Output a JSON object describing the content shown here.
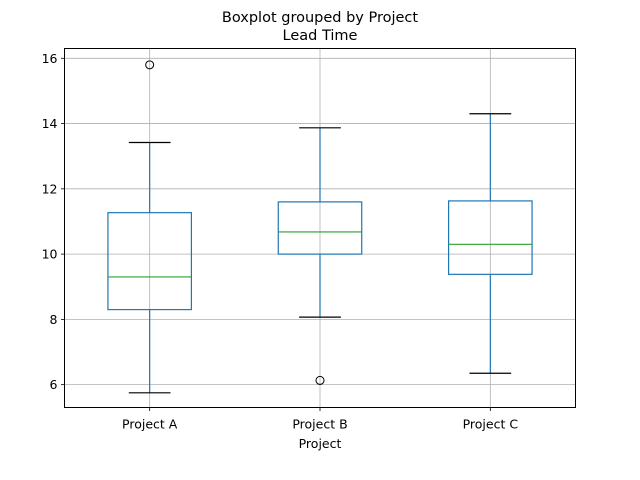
{
  "chart_data": {
    "type": "boxplot",
    "title": "Boxplot grouped by Project",
    "subtitle": "Lead Time",
    "xlabel": "Project",
    "ylabel": "",
    "ylim": [
      5.3,
      16.3
    ],
    "yticks": [
      6,
      8,
      10,
      12,
      14,
      16
    ],
    "grid": true,
    "categories": [
      "Project A",
      "Project B",
      "Project C"
    ],
    "boxes": [
      {
        "name": "Project A",
        "whisker_low": 5.75,
        "q1": 8.3,
        "median": 9.3,
        "q3": 11.27,
        "whisker_high": 13.42,
        "outliers": [
          15.8
        ]
      },
      {
        "name": "Project B",
        "whisker_low": 8.07,
        "q1": 10.0,
        "median": 10.68,
        "q3": 11.6,
        "whisker_high": 13.87,
        "outliers": [
          6.13
        ]
      },
      {
        "name": "Project C",
        "whisker_low": 6.35,
        "q1": 9.38,
        "median": 10.3,
        "q3": 11.63,
        "whisker_high": 14.3,
        "outliers": []
      }
    ],
    "colors": {
      "box": "#1f77b4",
      "median": "#2ca02c",
      "cap": "#000000",
      "grid": "#b0b0b0",
      "outlier": "#000000"
    }
  }
}
